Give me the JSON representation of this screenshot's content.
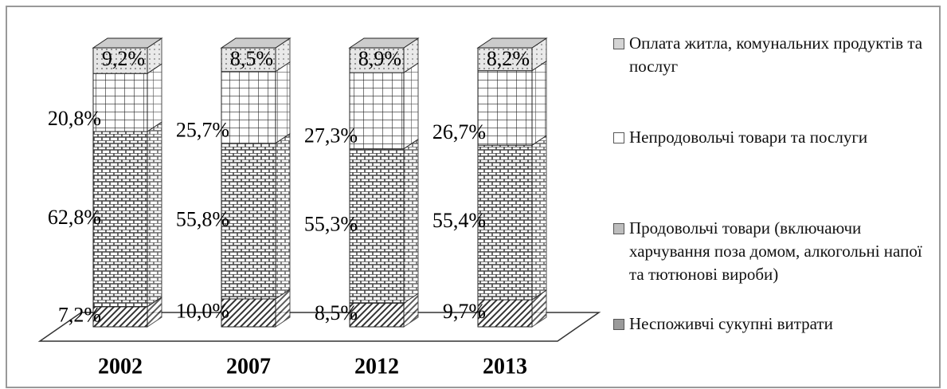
{
  "chart_data": {
    "type": "stacked-bar",
    "categories": [
      "2002",
      "2007",
      "2012",
      "2013"
    ],
    "series": [
      {
        "name": "Неспоживчі сукупні витрати",
        "color": "#9a9a9a",
        "values": [
          7.2,
          10.0,
          8.5,
          9.7
        ],
        "value_labels": [
          "7,2%",
          "10,0%",
          "8,5%",
          "9,7%"
        ]
      },
      {
        "name": "Продовольчі товари (включаючи харчування поза домом, алкогольні напої та тютюнові вироби)",
        "color": "#bdbdbd",
        "values": [
          62.8,
          55.8,
          55.3,
          55.4
        ],
        "value_labels": [
          "62,8%",
          "55,8%",
          "55,3%",
          "55,4%"
        ]
      },
      {
        "name": "Непродовольчі товари та послуги",
        "color": "#ffffff",
        "values": [
          20.8,
          25.7,
          27.3,
          26.7
        ],
        "value_labels": [
          "20,8%",
          "25,7%",
          "27,3%",
          "26,7%"
        ]
      },
      {
        "name": "Оплата житла, комунальних продуктів та послуг",
        "color": "#d4d4d4",
        "values": [
          9.2,
          8.5,
          8.9,
          8.2
        ],
        "value_labels": [
          "9,2%",
          "8,5%",
          "8,9%",
          "8,2%"
        ]
      }
    ]
  }
}
